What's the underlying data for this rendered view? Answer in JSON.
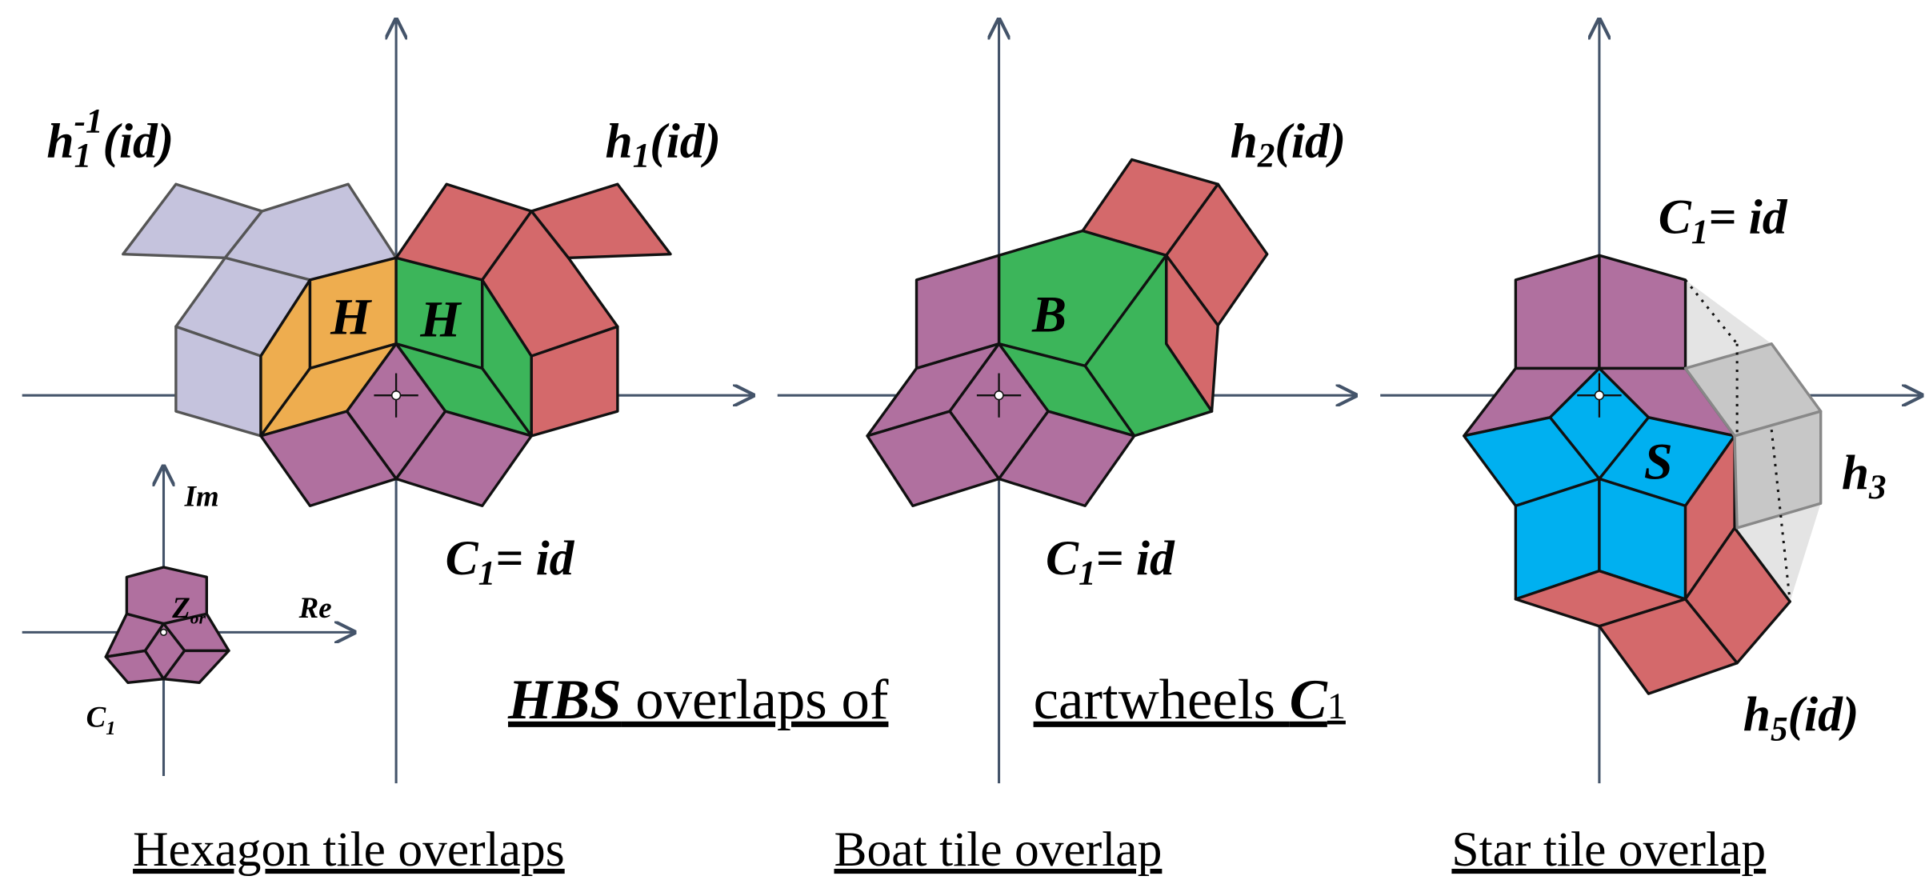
{
  "labels": [
    {
      "main": "h",
      "sub": "1",
      "sup": "-1",
      "rest": "(id)"
    },
    {
      "main": "h",
      "sub": "1",
      "rest": "(id)"
    },
    {
      "main": "C",
      "sub": "1",
      "rest": "= id"
    },
    {
      "main": "h",
      "sub": "2",
      "rest": "(id)"
    },
    {
      "main": "C",
      "sub": "1",
      "rest": "= id"
    },
    {
      "main": "C",
      "sub": "1",
      "rest": "= id"
    },
    {
      "main": "h",
      "sub": "3"
    },
    {
      "main": "h",
      "sub": "5",
      "rest": "(id)"
    }
  ],
  "tiles": [
    "H",
    "H",
    "B",
    "S"
  ],
  "inset": {
    "im": "Im",
    "re": "Re",
    "origin": {
      "main": "Z",
      "sub": "or"
    },
    "cartwheel": {
      "main": "C",
      "sub": "1"
    }
  },
  "title": {
    "emph": "HBS",
    "rest": " overlaps of",
    "second": "cartwheels ",
    "symbol": "C",
    "sub": "1"
  },
  "captions": [
    "Hexagon tile overlaps",
    "Boat tile overlap",
    "Star tile overlap"
  ]
}
